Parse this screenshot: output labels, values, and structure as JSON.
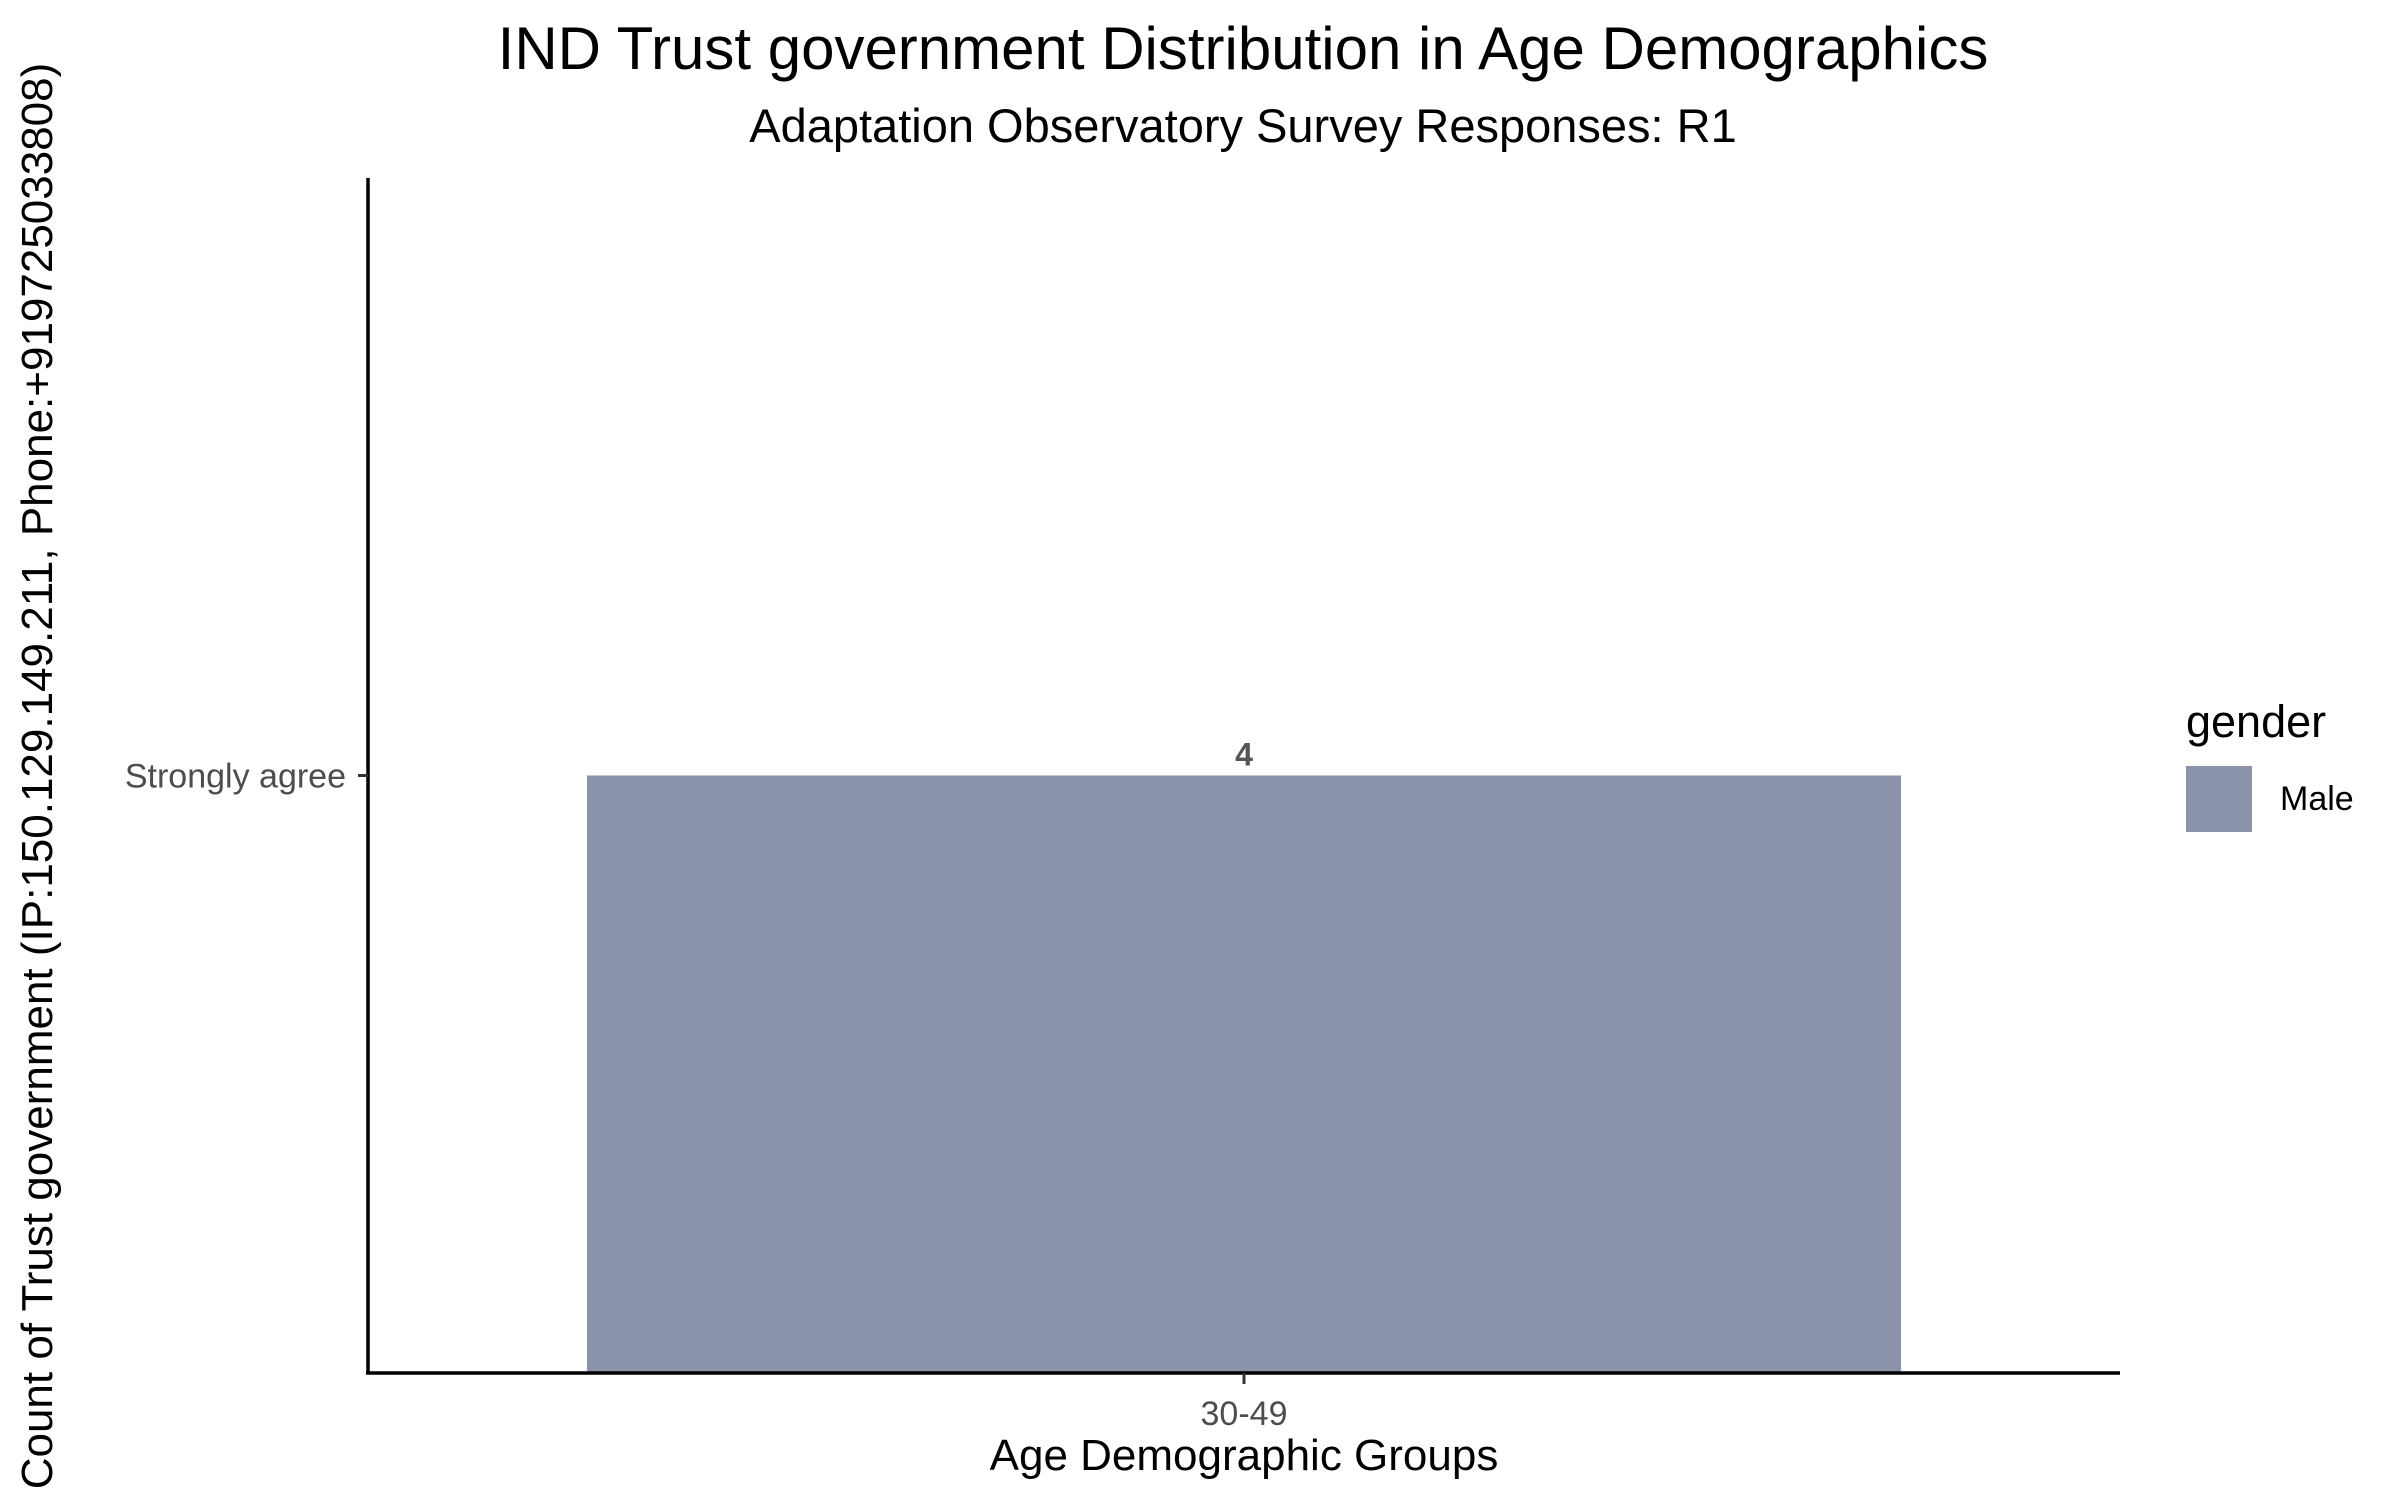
{
  "chart_data": {
    "type": "bar",
    "title": "IND Trust government Distribution in Age Demographics",
    "subtitle": "Adaptation Observatory Survey Responses: R1",
    "xlabel": "Age Demographic Groups",
    "ylabel": "Count of Trust government (IP:150.129.149.211, Phone:+919725033808)",
    "categories": [
      "30-49"
    ],
    "y_categories": [
      "Strongly agree"
    ],
    "series": [
      {
        "name": "Male",
        "color": "#8b93ab",
        "values": [
          "Strongly agree"
        ],
        "labels": [
          "4"
        ]
      }
    ],
    "legend": {
      "title": "gender",
      "position": "right"
    },
    "grid": false
  }
}
